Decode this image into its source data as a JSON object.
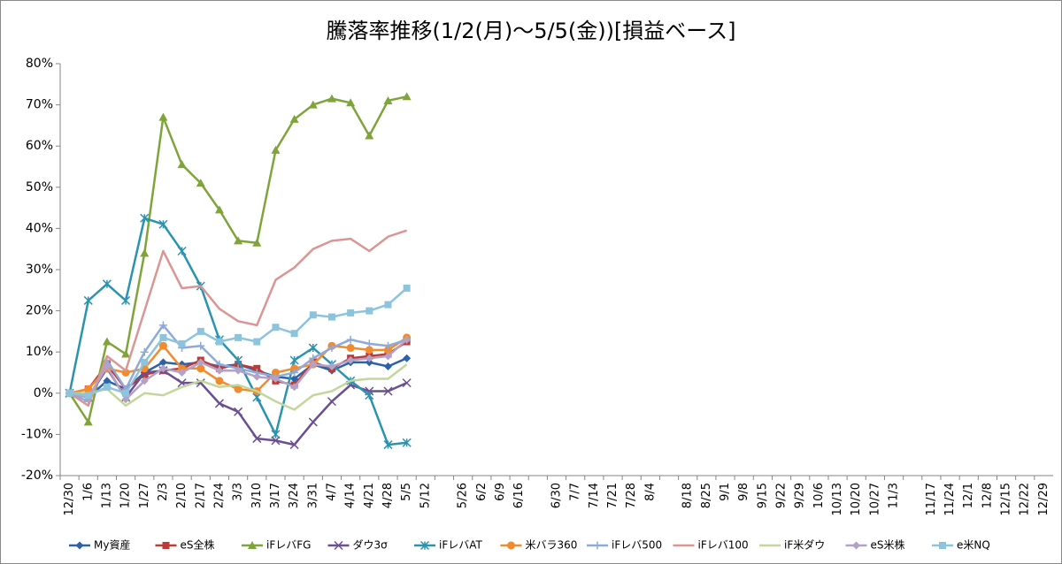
{
  "chart_data": {
    "type": "line",
    "title": "騰落率推移(1/2(月)～5/5(金))[損益ベース]",
    "categories": [
      "12/30",
      "1/6",
      "1/13",
      "1/20",
      "1/27",
      "2/3",
      "2/10",
      "2/17",
      "2/24",
      "3/3",
      "3/10",
      "3/17",
      "3/24",
      "3/31",
      "4/7",
      "4/14",
      "4/21",
      "4/28",
      "5/5",
      "5/12",
      null,
      "5/26",
      "6/2",
      "6/9",
      "6/16",
      null,
      "6/30",
      "7/7",
      "7/14",
      "7/21",
      "7/28",
      "8/4",
      null,
      "8/18",
      "8/25",
      "9/1",
      "9/8",
      "9/15",
      "9/22",
      "9/29",
      "10/6",
      "10/13",
      "10/20",
      "10/27",
      "11/3",
      null,
      "11/17",
      "11/24",
      "12/1",
      "12/8",
      "12/15",
      "12/22",
      "12/29"
    ],
    "ylim": [
      -20,
      80
    ],
    "yticks": [
      {
        "value": -20,
        "label": "-20%"
      },
      {
        "value": -10,
        "label": "-10%"
      },
      {
        "value": 0,
        "label": "0%"
      },
      {
        "value": 10,
        "label": "10%"
      },
      {
        "value": 20,
        "label": "20%"
      },
      {
        "value": 30,
        "label": "30%"
      },
      {
        "value": 40,
        "label": "40%"
      },
      {
        "value": 50,
        "label": "50%"
      },
      {
        "value": 60,
        "label": "60%"
      },
      {
        "value": 70,
        "label": "70%"
      },
      {
        "value": 80,
        "label": "80%"
      }
    ],
    "grid": false,
    "legend": "bottom",
    "series": [
      {
        "name": "My資産",
        "color": "#2e62a8",
        "marker": "diamond",
        "values": [
          0,
          -1,
          3,
          1,
          5,
          7.5,
          7,
          7.5,
          6.5,
          7,
          5.5,
          4,
          3.5,
          7,
          5.5,
          7.5,
          7.5,
          6.5,
          8.5,
          null,
          null,
          null,
          null,
          null,
          null,
          null,
          null,
          null,
          null,
          null,
          null,
          null,
          null,
          null,
          null,
          null,
          null,
          null,
          null,
          null,
          null,
          null,
          null,
          null,
          null,
          null,
          null,
          null,
          null,
          null,
          null,
          null,
          null
        ]
      },
      {
        "name": "eS全株",
        "color": "#be3a36",
        "marker": "square",
        "values": [
          0,
          1,
          7,
          1,
          4.5,
          5.5,
          6,
          8,
          6,
          7,
          6,
          3,
          2,
          7.5,
          6,
          8.5,
          9,
          9.5,
          12.5,
          null,
          null,
          null,
          null,
          null,
          null,
          null,
          null,
          null,
          null,
          null,
          null,
          null,
          null,
          null,
          null,
          null,
          null,
          null,
          null,
          null,
          null,
          null,
          null,
          null,
          null,
          null,
          null,
          null,
          null,
          null,
          null,
          null,
          null
        ]
      },
      {
        "name": "iFレバFG",
        "color": "#7ea43a",
        "marker": "triangle",
        "values": [
          0,
          -7,
          12.5,
          9.5,
          34,
          67,
          55.5,
          51,
          44.5,
          37,
          36.5,
          59,
          66.5,
          70,
          71.5,
          70.5,
          62.5,
          71,
          72,
          null,
          null,
          null,
          null,
          null,
          null,
          null,
          null,
          null,
          null,
          null,
          null,
          null,
          null,
          null,
          null,
          null,
          null,
          null,
          null,
          null,
          null,
          null,
          null,
          null,
          null,
          null,
          null,
          null,
          null,
          null,
          null,
          null,
          null
        ]
      },
      {
        "name": "ダウ3σ",
        "color": "#6a4f93",
        "marker": "x",
        "values": [
          0,
          -1,
          6,
          -1,
          5,
          5.5,
          2.5,
          2.5,
          -2.5,
          -4.5,
          -11,
          -11.5,
          -12.5,
          -7,
          -2,
          2,
          0.5,
          0.5,
          2.5,
          null,
          null,
          null,
          null,
          null,
          null,
          null,
          null,
          null,
          null,
          null,
          null,
          null,
          null,
          null,
          null,
          null,
          null,
          null,
          null,
          null,
          null,
          null,
          null,
          null,
          null,
          null,
          null,
          null,
          null,
          null,
          null,
          null,
          null
        ]
      },
      {
        "name": "iFレバAT",
        "color": "#2a93b0",
        "marker": "star",
        "values": [
          0,
          22.5,
          26.5,
          22.5,
          42.5,
          41,
          34.5,
          26,
          13,
          8,
          -1,
          -10,
          8,
          11,
          7,
          3,
          -0.5,
          -12.5,
          -12,
          null,
          null,
          null,
          null,
          null,
          null,
          null,
          null,
          null,
          null,
          null,
          null,
          null,
          null,
          null,
          null,
          null,
          null,
          null,
          null,
          null,
          null,
          null,
          null,
          null,
          null,
          null,
          null,
          null,
          null,
          null,
          null,
          null,
          null
        ]
      },
      {
        "name": "米バラ360",
        "color": "#f28a2e",
        "marker": "circle",
        "values": [
          0,
          1,
          6,
          5,
          6,
          11.5,
          6,
          6,
          3,
          1,
          0.5,
          5,
          6,
          7,
          11.5,
          11,
          10.5,
          10.5,
          13.5,
          null,
          null,
          null,
          null,
          null,
          null,
          null,
          null,
          null,
          null,
          null,
          null,
          null,
          null,
          null,
          null,
          null,
          null,
          null,
          null,
          null,
          null,
          null,
          null,
          null,
          null,
          null,
          null,
          null,
          null,
          null,
          null,
          null,
          null
        ]
      },
      {
        "name": "iFレバ500",
        "color": "#8eaadb",
        "marker": "plus",
        "values": [
          0,
          -2,
          8,
          1,
          10,
          16.5,
          11,
          11.5,
          7,
          6,
          5,
          4,
          5,
          8.5,
          11,
          13,
          12,
          11.5,
          13,
          null,
          null,
          null,
          null,
          null,
          null,
          null,
          null,
          null,
          null,
          null,
          null,
          null,
          null,
          null,
          null,
          null,
          null,
          null,
          null,
          null,
          null,
          null,
          null,
          null,
          null,
          null,
          null,
          null,
          null,
          null,
          null,
          null,
          null
        ]
      },
      {
        "name": "iFレバ100",
        "color": "#d99694",
        "marker": "none",
        "values": [
          0,
          -3,
          9,
          5.5,
          20,
          34.5,
          25.5,
          26,
          20.5,
          17.5,
          16.5,
          27.5,
          30.5,
          35,
          37,
          37.5,
          34.5,
          38,
          39.5,
          null,
          null,
          null,
          null,
          null,
          null,
          null,
          null,
          null,
          null,
          null,
          null,
          null,
          null,
          null,
          null,
          null,
          null,
          null,
          null,
          null,
          null,
          null,
          null,
          null,
          null,
          null,
          null,
          null,
          null,
          null,
          null,
          null,
          null
        ]
      },
      {
        "name": "iF米ダウ",
        "color": "#c3d69b",
        "marker": "none",
        "values": [
          0,
          0,
          1,
          -3,
          0,
          -0.5,
          1.5,
          3,
          1.5,
          2,
          0.5,
          -2,
          -4,
          -0.5,
          0.5,
          3,
          3.5,
          3.5,
          7,
          null,
          null,
          null,
          null,
          null,
          null,
          null,
          null,
          null,
          null,
          null,
          null,
          null,
          null,
          null,
          null,
          null,
          null,
          null,
          null,
          null,
          null,
          null,
          null,
          null,
          null,
          null,
          null,
          null,
          null,
          null,
          null,
          null,
          null
        ]
      },
      {
        "name": "eS米株",
        "color": "#b3a2c7",
        "marker": "diamond",
        "values": [
          0,
          -1,
          6.5,
          -1.5,
          3,
          6,
          5,
          7.5,
          5.5,
          5.5,
          4,
          3.5,
          1.5,
          7,
          6.5,
          8,
          8.5,
          9,
          13,
          null,
          null,
          null,
          null,
          null,
          null,
          null,
          null,
          null,
          null,
          null,
          null,
          null,
          null,
          null,
          null,
          null,
          null,
          null,
          null,
          null,
          null,
          null,
          null,
          null,
          null,
          null,
          null,
          null,
          null,
          null,
          null,
          null,
          null
        ]
      },
      {
        "name": "e米NQ",
        "color": "#8cc4dc",
        "marker": "square",
        "values": [
          0,
          -0.5,
          1.5,
          0,
          7.5,
          13.5,
          12,
          15,
          12.5,
          13.5,
          12.5,
          16,
          14.5,
          19,
          18.5,
          19.5,
          20,
          21.5,
          25.5,
          null,
          null,
          null,
          null,
          null,
          null,
          null,
          null,
          null,
          null,
          null,
          null,
          null,
          null,
          null,
          null,
          null,
          null,
          null,
          null,
          null,
          null,
          null,
          null,
          null,
          null,
          null,
          null,
          null,
          null,
          null,
          null,
          null,
          null
        ]
      }
    ]
  }
}
